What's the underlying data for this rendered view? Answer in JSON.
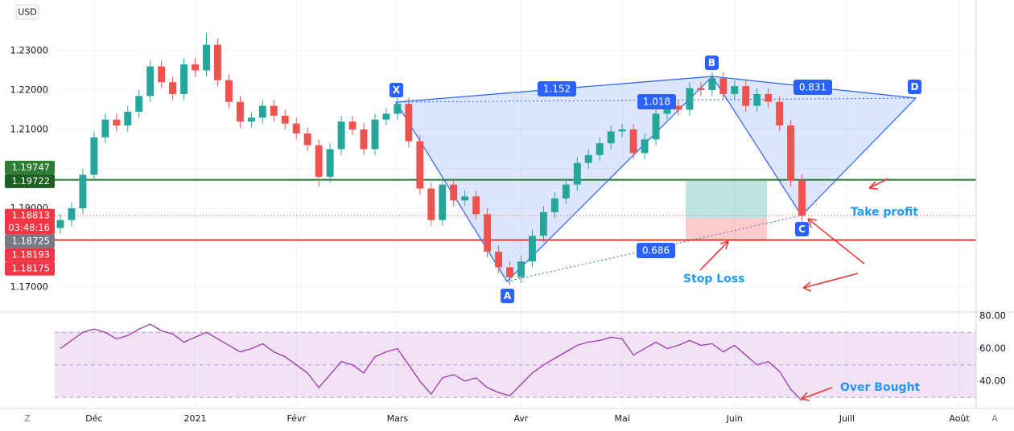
{
  "ui": {
    "currency": "USD",
    "buttons": [
      "Z",
      "A"
    ]
  },
  "annotations": {
    "take_profit": "Take profit",
    "stop_loss": "Stop Loss",
    "over_bought": "Over Bought"
  },
  "harmonic": {
    "points": [
      "X",
      "A",
      "B",
      "C",
      "D"
    ],
    "ratios": [
      1.152,
      1.018,
      0.831,
      0.686
    ]
  },
  "chart_data": [
    {
      "type": "candlestick",
      "up_color": "#26a69a",
      "down_color": "#ef5350",
      "grid": true,
      "categories": [
        null,
        null,
        null,
        "Déc",
        null,
        null,
        null,
        null,
        null,
        null,
        null,
        null,
        "2021",
        null,
        null,
        null,
        null,
        null,
        null,
        null,
        null,
        "Févr",
        null,
        null,
        null,
        null,
        null,
        null,
        null,
        null,
        "Mars",
        null,
        null,
        null,
        null,
        null,
        null,
        null,
        null,
        null,
        null,
        "Avr",
        null,
        null,
        null,
        null,
        null,
        null,
        null,
        null,
        "Mai",
        null,
        null,
        null,
        null,
        null,
        null,
        null,
        null,
        null,
        "Juin",
        null,
        null,
        null,
        null,
        null,
        null,
        null,
        null,
        null,
        "Juill",
        null,
        null,
        null,
        null,
        null,
        null,
        null,
        null,
        null,
        "Août",
        null
      ],
      "open": [
        1.185,
        1.187,
        1.19,
        1.1985,
        1.208,
        1.2125,
        1.211,
        1.2145,
        1.2185,
        1.226,
        1.222,
        1.219,
        1.2265,
        1.225,
        1.2315,
        1.2225,
        1.217,
        1.212,
        1.213,
        1.216,
        1.2135,
        1.2115,
        1.209,
        1.206,
        1.198,
        1.205,
        1.212,
        1.21,
        1.205,
        1.2125,
        1.214,
        1.2165,
        1.207,
        1.195,
        1.187,
        1.196,
        1.192,
        1.193,
        1.1885,
        1.179,
        1.175,
        1.1725,
        1.1765,
        1.183,
        1.189,
        1.1925,
        1.196,
        1.2015,
        1.2035,
        1.2065,
        1.2095,
        1.21,
        1.204,
        1.2075,
        1.214,
        1.216,
        1.215,
        1.2205,
        1.22,
        1.223,
        1.219,
        1.221,
        1.216,
        1.219,
        1.217,
        1.211,
        1.197,
        null,
        null,
        null,
        null,
        null,
        null,
        null,
        null,
        null,
        null,
        null,
        null,
        null,
        null,
        null
      ],
      "high": [
        1.1885,
        1.1915,
        1.2,
        1.2095,
        1.214,
        1.214,
        1.216,
        1.22,
        1.2275,
        1.2275,
        1.2235,
        1.228,
        1.228,
        1.2345,
        1.233,
        1.224,
        1.2185,
        1.2145,
        1.2175,
        1.2175,
        1.215,
        1.213,
        1.2105,
        1.2075,
        1.2065,
        1.2135,
        1.2135,
        1.2115,
        1.214,
        1.2155,
        1.218,
        1.218,
        1.2085,
        1.1965,
        1.1975,
        1.1975,
        1.1945,
        1.1945,
        1.19,
        1.1805,
        1.1765,
        1.178,
        1.1845,
        1.1905,
        1.194,
        1.1975,
        1.203,
        1.205,
        1.208,
        1.211,
        1.2115,
        1.2115,
        1.209,
        1.2155,
        1.2175,
        1.2175,
        1.222,
        1.222,
        1.2245,
        1.2245,
        1.2225,
        1.2225,
        1.2205,
        1.2205,
        1.2185,
        1.2125,
        1.1985,
        null,
        null,
        null,
        null,
        null,
        null,
        null,
        null,
        null,
        null,
        null,
        null,
        null,
        null,
        null
      ],
      "low": [
        1.1835,
        1.1855,
        1.1885,
        1.197,
        1.2065,
        1.2095,
        1.2095,
        1.213,
        1.217,
        1.2205,
        1.2175,
        1.2175,
        1.2235,
        1.2235,
        1.221,
        1.2155,
        1.2105,
        1.2105,
        1.2115,
        1.212,
        1.21,
        1.2075,
        1.2045,
        1.1955,
        1.1965,
        1.2035,
        1.2085,
        1.2035,
        1.2035,
        1.211,
        1.2125,
        1.2055,
        1.1935,
        1.1855,
        1.1855,
        1.1905,
        1.1905,
        1.187,
        1.1775,
        1.1735,
        1.1705,
        1.171,
        1.175,
        1.1815,
        1.1875,
        1.191,
        1.1945,
        1.2,
        1.202,
        1.205,
        1.208,
        1.2025,
        1.2025,
        1.206,
        1.2125,
        1.2135,
        1.2135,
        1.2185,
        1.2185,
        1.2175,
        1.2175,
        1.2145,
        1.2145,
        1.2155,
        1.2095,
        1.1955,
        1.1866,
        null,
        null,
        null,
        null,
        null,
        null,
        null,
        null,
        null,
        null,
        null,
        null,
        null,
        null,
        null
      ],
      "close": [
        1.187,
        1.19,
        1.1985,
        1.208,
        1.2125,
        1.211,
        1.2145,
        1.2185,
        1.226,
        1.222,
        1.219,
        1.2265,
        1.225,
        1.2315,
        1.2225,
        1.217,
        1.212,
        1.213,
        1.216,
        1.2135,
        1.2115,
        1.209,
        1.206,
        1.198,
        1.205,
        1.212,
        1.21,
        1.205,
        1.2125,
        1.214,
        1.2165,
        1.207,
        1.195,
        1.187,
        1.196,
        1.192,
        1.193,
        1.1885,
        1.179,
        1.175,
        1.1725,
        1.1765,
        1.183,
        1.189,
        1.1925,
        1.196,
        1.2015,
        1.2035,
        1.2065,
        1.2095,
        1.21,
        1.204,
        1.2075,
        1.214,
        1.216,
        1.215,
        1.2205,
        1.22,
        1.223,
        1.219,
        1.221,
        1.216,
        1.219,
        1.217,
        1.211,
        1.197,
        1.1881,
        null,
        null,
        null,
        null,
        null,
        null,
        null,
        null,
        null,
        null,
        null,
        null,
        null,
        null,
        null
      ],
      "ylim": [
        1.16367,
        1.24286
      ],
      "yticks": [
        {
          "value": 1.17,
          "label": "1.17000"
        },
        {
          "value": 1.18,
          "label": "1.18000"
        },
        {
          "value": 1.19,
          "label": "1.19000"
        },
        {
          "value": 1.2,
          "label": "1.20000"
        },
        {
          "value": 1.21,
          "label": "1.21000"
        },
        {
          "value": 1.22,
          "label": "1.22000"
        },
        {
          "value": 1.23,
          "label": "1.23000"
        }
      ],
      "levels": [
        {
          "value": 1.19722,
          "color": "#1b7b2a",
          "style": "solid"
        },
        {
          "value": 1.18193,
          "color": "#e53935",
          "style": "solid"
        },
        {
          "value": 1.18813,
          "color": "#e53935",
          "style": "dotted"
        }
      ],
      "price_labels": [
        {
          "value": 1.19747,
          "color": "#2e7d32"
        },
        {
          "value": 1.19722,
          "color": "#1b5e20"
        },
        {
          "value": 1.18813,
          "color": "#f23645",
          "countdown": "03:48:16"
        },
        {
          "value": 1.18725,
          "color": "#787b86"
        },
        {
          "value": 1.18193,
          "color": "#f23645"
        },
        {
          "value": 1.18175,
          "color": "#f23645"
        }
      ]
    },
    {
      "type": "line",
      "name": "RSI",
      "color": "#9c27b0",
      "values": [
        60,
        65,
        70,
        72,
        70,
        66,
        68,
        72,
        75,
        71,
        69,
        64,
        67,
        70,
        66,
        62,
        58,
        60,
        63,
        58,
        55,
        50,
        45,
        36,
        44,
        52,
        50,
        45,
        55,
        58,
        60,
        50,
        40,
        32,
        42,
        44,
        40,
        42,
        36,
        33,
        31,
        38,
        45,
        50,
        54,
        58,
        62,
        64,
        65,
        67,
        66,
        56,
        60,
        64,
        60,
        62,
        65,
        62,
        63,
        58,
        62,
        56,
        50,
        52,
        46,
        35,
        28,
        null,
        null,
        null,
        null,
        null,
        null,
        null,
        null,
        null,
        null,
        null,
        null,
        null,
        null,
        null
      ],
      "ylim": [
        23.2,
        82.5
      ],
      "yticks": [
        {
          "value": 40,
          "label": "40.00"
        },
        {
          "value": 60,
          "label": "60.00"
        },
        {
          "value": 80,
          "label": "80.00"
        }
      ],
      "levels": [
        70,
        50,
        30
      ],
      "band_color": "#e1bee7"
    }
  ]
}
